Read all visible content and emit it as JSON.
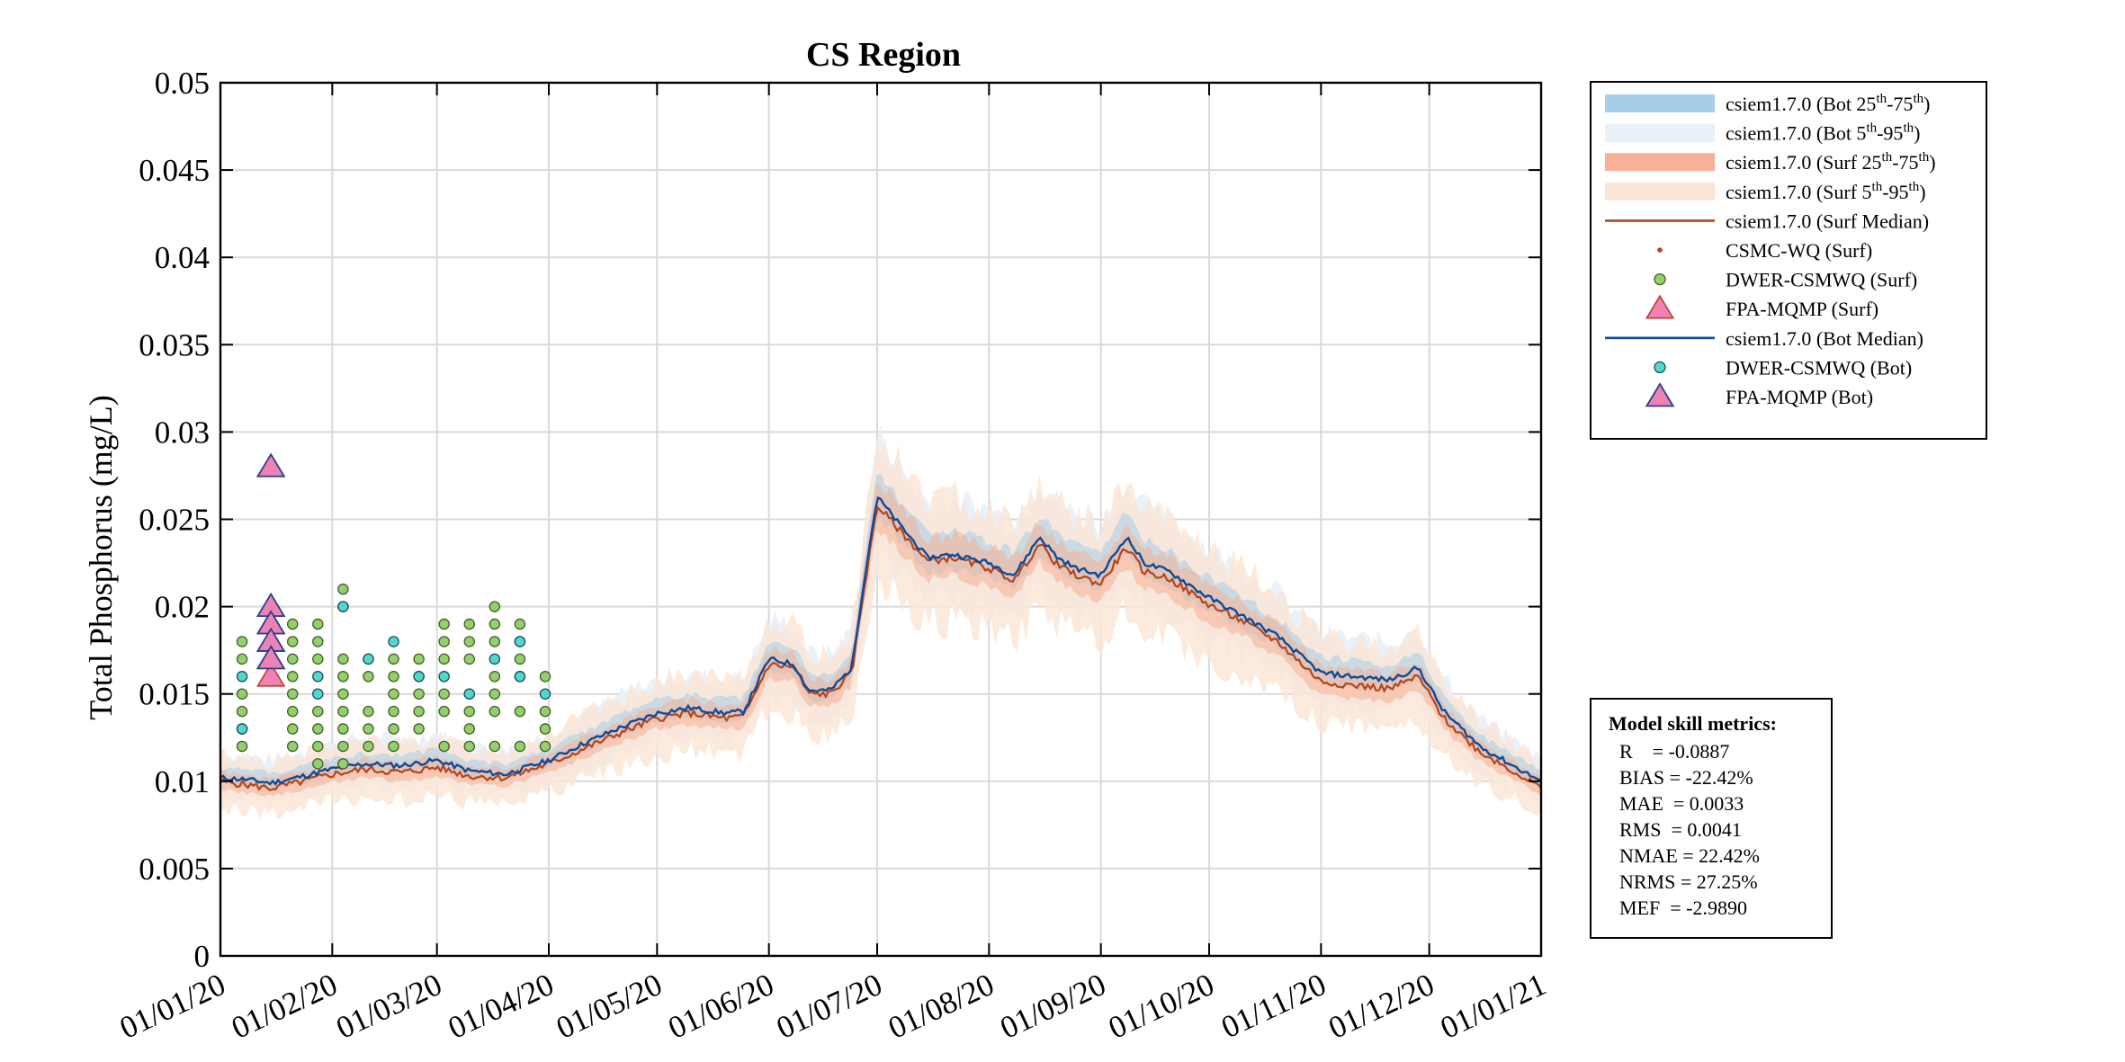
{
  "chart_data": {
    "type": "line",
    "title": "CS Region",
    "ylabel": "Total Phosphorus (mg/L)",
    "xlabel": "",
    "xlim": [
      "2020-01-01",
      "2021-01-01"
    ],
    "ylim": [
      0,
      0.05
    ],
    "grid": true,
    "legend_position": "outside-right",
    "x_ticks": [
      "2020-01-01",
      "2020-02-01",
      "2020-03-01",
      "2020-04-01",
      "2020-05-01",
      "2020-06-01",
      "2020-07-01",
      "2020-08-01",
      "2020-09-01",
      "2020-10-01",
      "2020-11-01",
      "2020-12-01",
      "2021-01-01"
    ],
    "x_tick_labels": [
      "01/01/20",
      "01/02/20",
      "01/03/20",
      "01/04/20",
      "01/05/20",
      "01/06/20",
      "01/07/20",
      "01/08/20",
      "01/09/20",
      "01/10/20",
      "01/11/20",
      "01/12/20",
      "01/01/21"
    ],
    "y_ticks": [
      0,
      0.005,
      0.01,
      0.015,
      0.02,
      0.025,
      0.03,
      0.035,
      0.04,
      0.045,
      0.05
    ],
    "y_tick_labels": [
      "0",
      "0.005",
      "0.01",
      "0.015",
      "0.02",
      "0.025",
      "0.03",
      "0.035",
      "0.04",
      "0.045",
      "0.05"
    ],
    "series_style": {
      "bot_median_color": "#0b4c9c",
      "surf_median_color": "#b5451b",
      "bot_iqr_color": "#a6cde9",
      "bot_p5_95_color": "#e8f0f8",
      "surf_iqr_color": "#f6b196",
      "surf_p5_95_color": "#fbe5d5",
      "dwer_surf_color": "#8fd16b",
      "dwer_bot_color": "#52d8c9",
      "fpa_color": "#ee82b5"
    },
    "bot_median": {
      "name": "csiem1.7.0 (Bot Median)",
      "x": [
        "2020-01-01",
        "2020-01-08",
        "2020-01-15",
        "2020-01-22",
        "2020-02-01",
        "2020-02-10",
        "2020-02-20",
        "2020-03-01",
        "2020-03-10",
        "2020-03-20",
        "2020-04-01",
        "2020-04-10",
        "2020-04-20",
        "2020-05-01",
        "2020-05-10",
        "2020-05-20",
        "2020-05-25",
        "2020-06-01",
        "2020-06-08",
        "2020-06-12",
        "2020-06-18",
        "2020-06-24",
        "2020-06-27",
        "2020-07-01",
        "2020-07-08",
        "2020-07-15",
        "2020-07-22",
        "2020-08-01",
        "2020-08-08",
        "2020-08-15",
        "2020-08-20",
        "2020-08-25",
        "2020-09-01",
        "2020-09-08",
        "2020-09-13",
        "2020-09-20",
        "2020-10-01",
        "2020-10-10",
        "2020-10-20",
        "2020-11-01",
        "2020-11-10",
        "2020-11-20",
        "2020-11-28",
        "2020-12-05",
        "2020-12-15",
        "2020-12-25",
        "2021-01-01"
      ],
      "values": [
        0.0102,
        0.0101,
        0.0099,
        0.0102,
        0.0107,
        0.011,
        0.0109,
        0.0112,
        0.0106,
        0.0104,
        0.0112,
        0.0121,
        0.013,
        0.0139,
        0.0142,
        0.0139,
        0.014,
        0.017,
        0.0167,
        0.0152,
        0.0152,
        0.0165,
        0.021,
        0.0263,
        0.0245,
        0.0228,
        0.023,
        0.0225,
        0.0218,
        0.024,
        0.0228,
        0.0222,
        0.0218,
        0.024,
        0.0225,
        0.022,
        0.0205,
        0.0195,
        0.0183,
        0.0162,
        0.016,
        0.0158,
        0.0165,
        0.014,
        0.012,
        0.0108,
        0.01
      ]
    },
    "surf_median": {
      "name": "csiem1.7.0 (Surf Median)",
      "x": [
        "2020-01-01",
        "2020-01-08",
        "2020-01-15",
        "2020-01-22",
        "2020-02-01",
        "2020-02-10",
        "2020-02-20",
        "2020-03-01",
        "2020-03-10",
        "2020-03-20",
        "2020-04-01",
        "2020-04-10",
        "2020-04-20",
        "2020-05-01",
        "2020-05-10",
        "2020-05-20",
        "2020-05-25",
        "2020-06-01",
        "2020-06-08",
        "2020-06-12",
        "2020-06-18",
        "2020-06-24",
        "2020-06-27",
        "2020-07-01",
        "2020-07-08",
        "2020-07-15",
        "2020-07-22",
        "2020-08-01",
        "2020-08-08",
        "2020-08-15",
        "2020-08-20",
        "2020-08-25",
        "2020-09-01",
        "2020-09-08",
        "2020-09-13",
        "2020-09-20",
        "2020-10-01",
        "2020-10-10",
        "2020-10-20",
        "2020-11-01",
        "2020-11-10",
        "2020-11-20",
        "2020-11-28",
        "2020-12-05",
        "2020-12-15",
        "2020-12-25",
        "2021-01-01"
      ],
      "values": [
        0.01,
        0.0098,
        0.0096,
        0.0099,
        0.0104,
        0.0107,
        0.0105,
        0.0108,
        0.0103,
        0.0102,
        0.011,
        0.0118,
        0.0127,
        0.0136,
        0.0139,
        0.0136,
        0.0137,
        0.0167,
        0.0165,
        0.015,
        0.015,
        0.0162,
        0.0205,
        0.0258,
        0.0242,
        0.0226,
        0.0228,
        0.0222,
        0.0215,
        0.0236,
        0.0224,
        0.0218,
        0.0213,
        0.0234,
        0.022,
        0.0216,
        0.0201,
        0.0192,
        0.018,
        0.0157,
        0.0155,
        0.0153,
        0.016,
        0.0136,
        0.0117,
        0.0105,
        0.0096
      ]
    },
    "dwer_surf": {
      "name": "DWER-CSMWQ (Surf)",
      "x": [
        "2020-01-07",
        "2020-01-07",
        "2020-01-07",
        "2020-01-07",
        "2020-01-07",
        "2020-01-07",
        "2020-01-21",
        "2020-01-21",
        "2020-01-21",
        "2020-01-21",
        "2020-01-21",
        "2020-01-21",
        "2020-01-21",
        "2020-01-21",
        "2020-01-28",
        "2020-01-28",
        "2020-01-28",
        "2020-01-28",
        "2020-01-28",
        "2020-01-28",
        "2020-01-28",
        "2020-02-04",
        "2020-02-04",
        "2020-02-04",
        "2020-02-04",
        "2020-02-04",
        "2020-02-04",
        "2020-02-04",
        "2020-02-04",
        "2020-02-04",
        "2020-02-11",
        "2020-02-11",
        "2020-02-11",
        "2020-02-11",
        "2020-02-11",
        "2020-02-18",
        "2020-02-18",
        "2020-02-18",
        "2020-02-18",
        "2020-02-18",
        "2020-02-18",
        "2020-02-25",
        "2020-02-25",
        "2020-02-25",
        "2020-02-25",
        "2020-02-25",
        "2020-03-03",
        "2020-03-03",
        "2020-03-03",
        "2020-03-03",
        "2020-03-03",
        "2020-03-03",
        "2020-03-10",
        "2020-03-10",
        "2020-03-10",
        "2020-03-10",
        "2020-03-10",
        "2020-03-10",
        "2020-03-10",
        "2020-03-17",
        "2020-03-17",
        "2020-03-17",
        "2020-03-17",
        "2020-03-17",
        "2020-03-17",
        "2020-03-17",
        "2020-03-24",
        "2020-03-24",
        "2020-03-24",
        "2020-03-24",
        "2020-03-24",
        "2020-03-24",
        "2020-03-31",
        "2020-03-31",
        "2020-03-31",
        "2020-03-31"
      ],
      "values": [
        0.018,
        0.017,
        0.015,
        0.014,
        0.013,
        0.012,
        0.019,
        0.018,
        0.017,
        0.016,
        0.015,
        0.014,
        0.013,
        0.012,
        0.019,
        0.018,
        0.017,
        0.014,
        0.013,
        0.012,
        0.011,
        0.021,
        0.017,
        0.016,
        0.015,
        0.014,
        0.013,
        0.012,
        0.011,
        0.02,
        0.017,
        0.016,
        0.014,
        0.013,
        0.012,
        0.017,
        0.016,
        0.015,
        0.014,
        0.013,
        0.012,
        0.017,
        0.016,
        0.015,
        0.014,
        0.013,
        0.019,
        0.018,
        0.017,
        0.015,
        0.014,
        0.012,
        0.019,
        0.018,
        0.017,
        0.015,
        0.014,
        0.013,
        0.012,
        0.02,
        0.019,
        0.018,
        0.016,
        0.015,
        0.014,
        0.012,
        0.019,
        0.018,
        0.017,
        0.016,
        0.014,
        0.012,
        0.016,
        0.014,
        0.013,
        0.012
      ],
      "color": "#8fd16b"
    },
    "dwer_bot": {
      "name": "DWER-CSMWQ (Bot)",
      "x": [
        "2020-01-07",
        "2020-01-07",
        "2020-01-28",
        "2020-01-28",
        "2020-02-04",
        "2020-02-11",
        "2020-02-18",
        "2020-02-25",
        "2020-03-03",
        "2020-03-10",
        "2020-03-17",
        "2020-03-24",
        "2020-03-24",
        "2020-03-31"
      ],
      "values": [
        0.013,
        0.016,
        0.016,
        0.015,
        0.02,
        0.017,
        0.018,
        0.016,
        0.016,
        0.015,
        0.017,
        0.018,
        0.016,
        0.015
      ],
      "color": "#52d8c9"
    },
    "fpa_surf": {
      "name": "FPA-MQMP (Surf)",
      "x": [
        "2020-01-15",
        "2020-01-15",
        "2020-01-15",
        "2020-01-15"
      ],
      "values": [
        0.019,
        0.018,
        0.017,
        0.016
      ],
      "color": "#ee82b5"
    },
    "fpa_bot": {
      "name": "FPA-MQMP (Bot)",
      "x": [
        "2020-01-15",
        "2020-01-15",
        "2020-01-15",
        "2020-01-15",
        "2020-01-15"
      ],
      "values": [
        0.028,
        0.02,
        0.019,
        0.018,
        0.017
      ],
      "color": "#ee82b5"
    },
    "csmc_surf": {
      "name": "CSMC-WQ (Surf)",
      "x": [],
      "values": []
    },
    "legend": [
      {
        "key": "bot_iqr",
        "text": "csiem1.7.0 (Bot 25th-75th)",
        "prefix": "csiem1.7.0 (Bot 25",
        "sup1": "th",
        "mid": "-75",
        "sup2": "th",
        "suffix": ")"
      },
      {
        "key": "bot_p5_95",
        "text": "csiem1.7.0 (Bot 5th-95th)",
        "prefix": "csiem1.7.0 (Bot 5",
        "sup1": "th",
        "mid": "-95",
        "sup2": "th",
        "suffix": ")"
      },
      {
        "key": "surf_iqr",
        "text": "csiem1.7.0 (Surf 25th-75th)",
        "prefix": "csiem1.7.0 (Surf 25",
        "sup1": "th",
        "mid": "-75",
        "sup2": "th",
        "suffix": ")"
      },
      {
        "key": "surf_p5_95",
        "text": "csiem1.7.0 (Surf 5th-95th)",
        "prefix": "csiem1.7.0 (Surf 5",
        "sup1": "th",
        "mid": "-95",
        "sup2": "th",
        "suffix": ")"
      },
      {
        "key": "surf_median",
        "text": "csiem1.7.0 (Surf Median)"
      },
      {
        "key": "csmc_surf",
        "text": "CSMC-WQ (Surf)"
      },
      {
        "key": "dwer_surf",
        "text": "DWER-CSMWQ (Surf)"
      },
      {
        "key": "fpa_surf",
        "text": "FPA-MQMP (Surf)"
      },
      {
        "key": "bot_median",
        "text": "csiem1.7.0 (Bot Median)"
      },
      {
        "key": "dwer_bot",
        "text": "DWER-CSMWQ (Bot)"
      },
      {
        "key": "fpa_bot",
        "text": "FPA-MQMP (Bot)"
      }
    ],
    "metrics": {
      "title": "Model skill metrics:",
      "lines": [
        "R    = -0.0887",
        "BIAS = -22.42%",
        "MAE  = 0.0033",
        "RMS  = 0.0041",
        "NMAE = 22.42%",
        "NRMS = 27.25%",
        "MEF  = -2.9890"
      ]
    }
  }
}
